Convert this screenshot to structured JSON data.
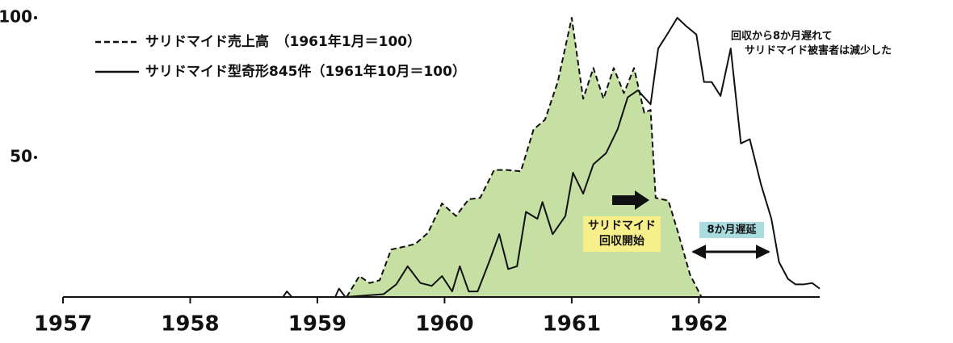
{
  "chart_data": {
    "type": "line",
    "xlim": [
      1957,
      1962.95
    ],
    "xticks": [
      1957,
      1958,
      1959,
      1960,
      1961,
      1962
    ],
    "ylim": [
      0,
      100
    ],
    "yticks": [
      50,
      100
    ],
    "series": [
      {
        "name": "サリドマイド売上高　（1961年1月＝100）",
        "color": "#111111",
        "fill": "#c6e0a4",
        "dashed": true,
        "x": [
          1959.23,
          1959.33,
          1959.41,
          1959.49,
          1959.58,
          1959.68,
          1959.77,
          1959.87,
          1959.98,
          1960.09,
          1960.19,
          1960.28,
          1960.39,
          1960.49,
          1960.6,
          1960.7,
          1960.79,
          1960.89,
          1961.0,
          1961.09,
          1961.17,
          1961.25,
          1961.33,
          1961.41,
          1961.49,
          1961.57,
          1961.62,
          1961.66,
          1961.76,
          1961.84,
          1961.93,
          1962.02
        ],
        "values": [
          0,
          7.5,
          5,
          6,
          17,
          18,
          19,
          23,
          33.5,
          29,
          35,
          35.5,
          45.5,
          45.5,
          45,
          60,
          63.5,
          77,
          100,
          71,
          82,
          71,
          82,
          73,
          82,
          66,
          67,
          35.5,
          34.5,
          22.5,
          8,
          0
        ]
      },
      {
        "name": "サリドマイド型奇形845件（1961年10月＝100）",
        "color": "#111111",
        "dashed": false,
        "x": [
          1957,
          1958.73,
          1958.76,
          1958.8,
          1959.14,
          1959.17,
          1959.22,
          1959.52,
          1959.62,
          1959.71,
          1959.81,
          1959.9,
          1959.98,
          1960.06,
          1960.12,
          1960.19,
          1960.26,
          1960.35,
          1960.43,
          1960.5,
          1960.57,
          1960.64,
          1960.73,
          1960.77,
          1960.85,
          1960.95,
          1961.01,
          1961.09,
          1961.17,
          1961.27,
          1961.36,
          1961.44,
          1961.52,
          1961.62,
          1961.68,
          1961.75,
          1961.83,
          1961.9,
          1961.98,
          1962.04,
          1962.1,
          1962.17,
          1962.25,
          1962.33,
          1962.4,
          1962.49,
          1962.57,
          1962.63,
          1962.7,
          1962.76,
          1962.82,
          1962.89,
          1962.95
        ],
        "values": [
          0,
          0,
          2,
          0,
          0,
          3,
          0,
          1,
          4.5,
          11,
          5,
          4,
          7.5,
          2,
          11,
          2,
          2,
          12.5,
          22.5,
          10,
          11,
          30.5,
          28,
          34,
          22.5,
          29,
          44.5,
          37,
          47.5,
          51.5,
          60,
          71.5,
          74,
          69,
          89,
          94,
          100,
          97,
          94,
          77,
          77,
          72,
          89,
          55,
          56.5,
          40,
          28,
          12.5,
          6.5,
          4.5,
          4.5,
          5,
          3
        ]
      }
    ],
    "annotations": [
      "回収から8か月遅れて",
      "サリドマイド被害者は減少した",
      "サリドマイド",
      "回収開始",
      "8か月遅延"
    ]
  }
}
